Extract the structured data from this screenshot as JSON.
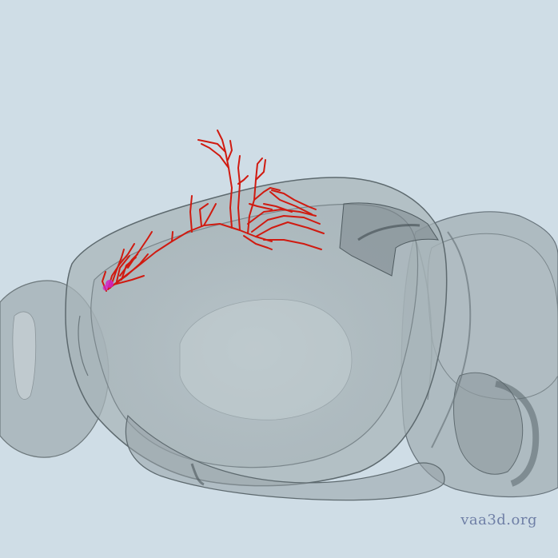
{
  "viewer": {
    "background_color": "#cfdde6",
    "brain_shell_color": "#9aa6ab",
    "brain_edge_color": "#5f6b70",
    "neuron_color": "#d01a10",
    "soma_color": "#d021c8",
    "watermark": "vaa3d.org"
  }
}
